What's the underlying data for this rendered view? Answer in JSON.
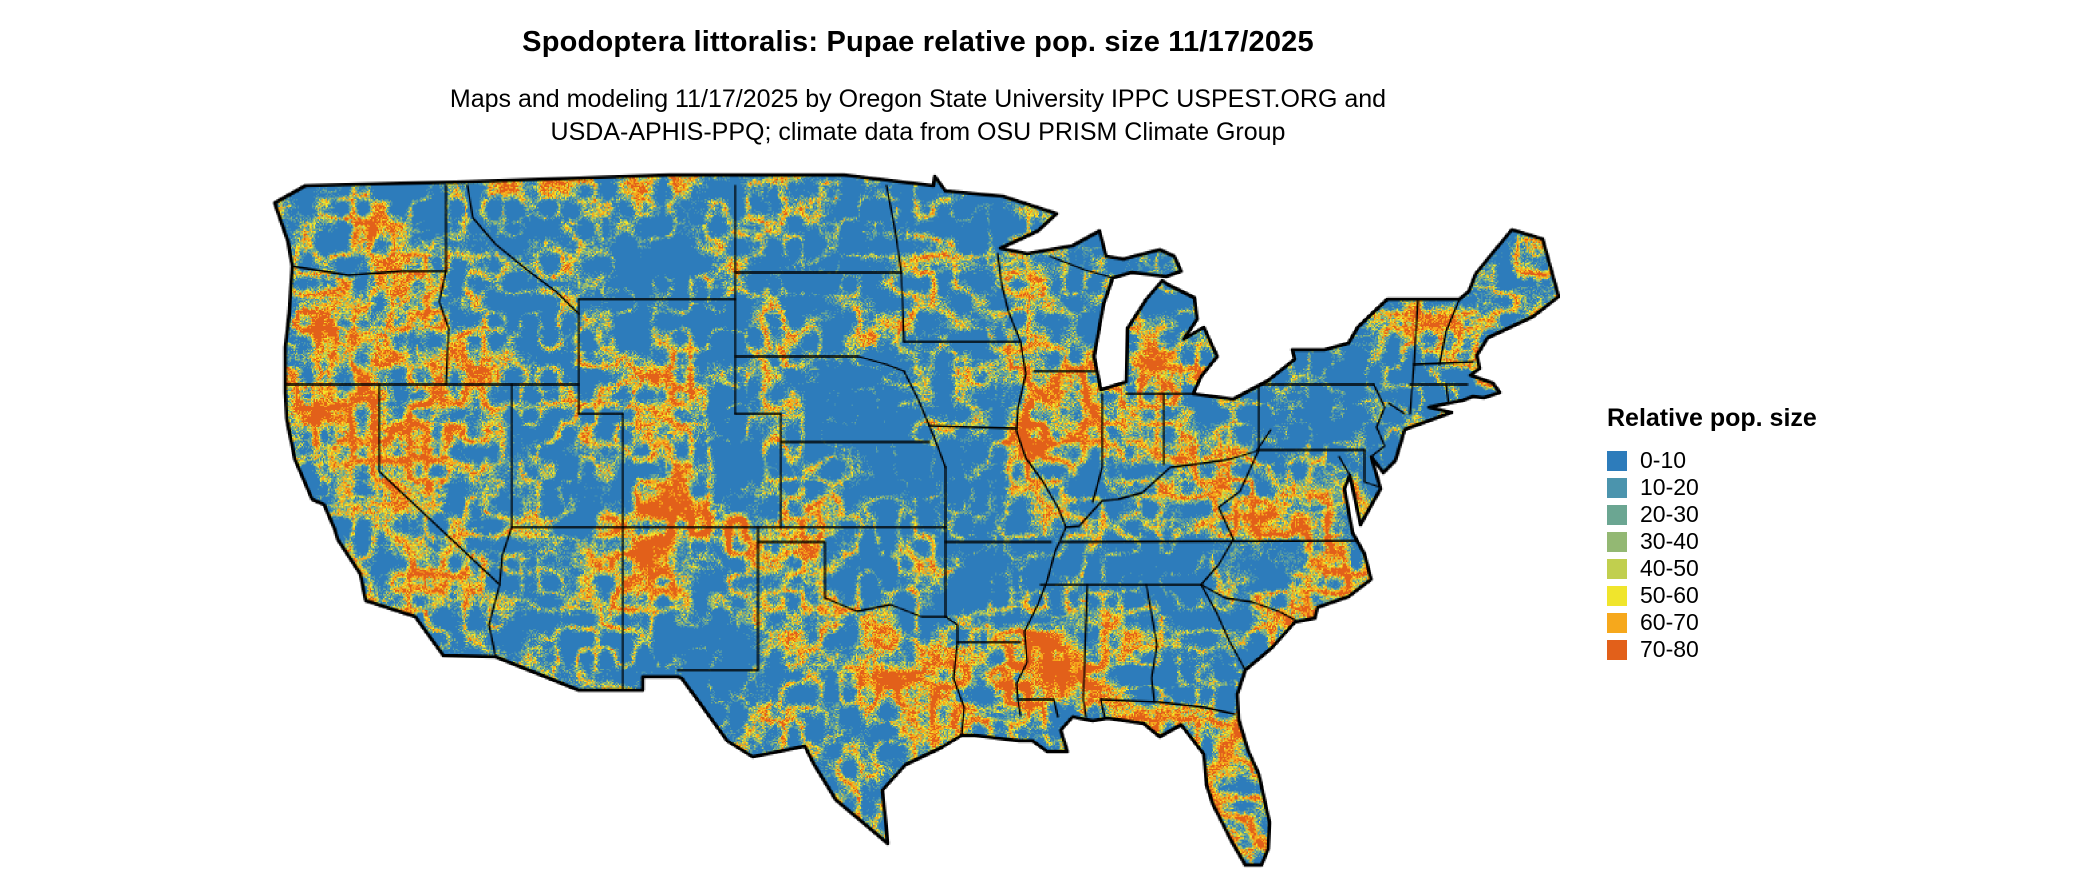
{
  "title": "Spodoptera littoralis: Pupae relative pop. size 11/17/2025",
  "subtitle_line1": "Maps and modeling 11/17/2025 by Oregon State University IPPC USPEST.ORG and",
  "subtitle_line2": "USDA-APHIS-PPQ; climate data from OSU PRISM Climate Group",
  "colors": {
    "background": "#ffffff",
    "state_border": "#000000",
    "text": "#000000"
  },
  "legend": {
    "title": "Relative pop. size",
    "items": [
      {
        "label": "0-10",
        "color": "#2d7cbb"
      },
      {
        "label": "10-20",
        "color": "#4b94ad"
      },
      {
        "label": "20-30",
        "color": "#6ba692"
      },
      {
        "label": "30-40",
        "color": "#93b873"
      },
      {
        "label": "40-50",
        "color": "#c1cf4e"
      },
      {
        "label": "50-60",
        "color": "#f0e52c"
      },
      {
        "label": "60-70",
        "color": "#f6a81c"
      },
      {
        "label": "70-80",
        "color": "#e2601a"
      }
    ]
  }
}
